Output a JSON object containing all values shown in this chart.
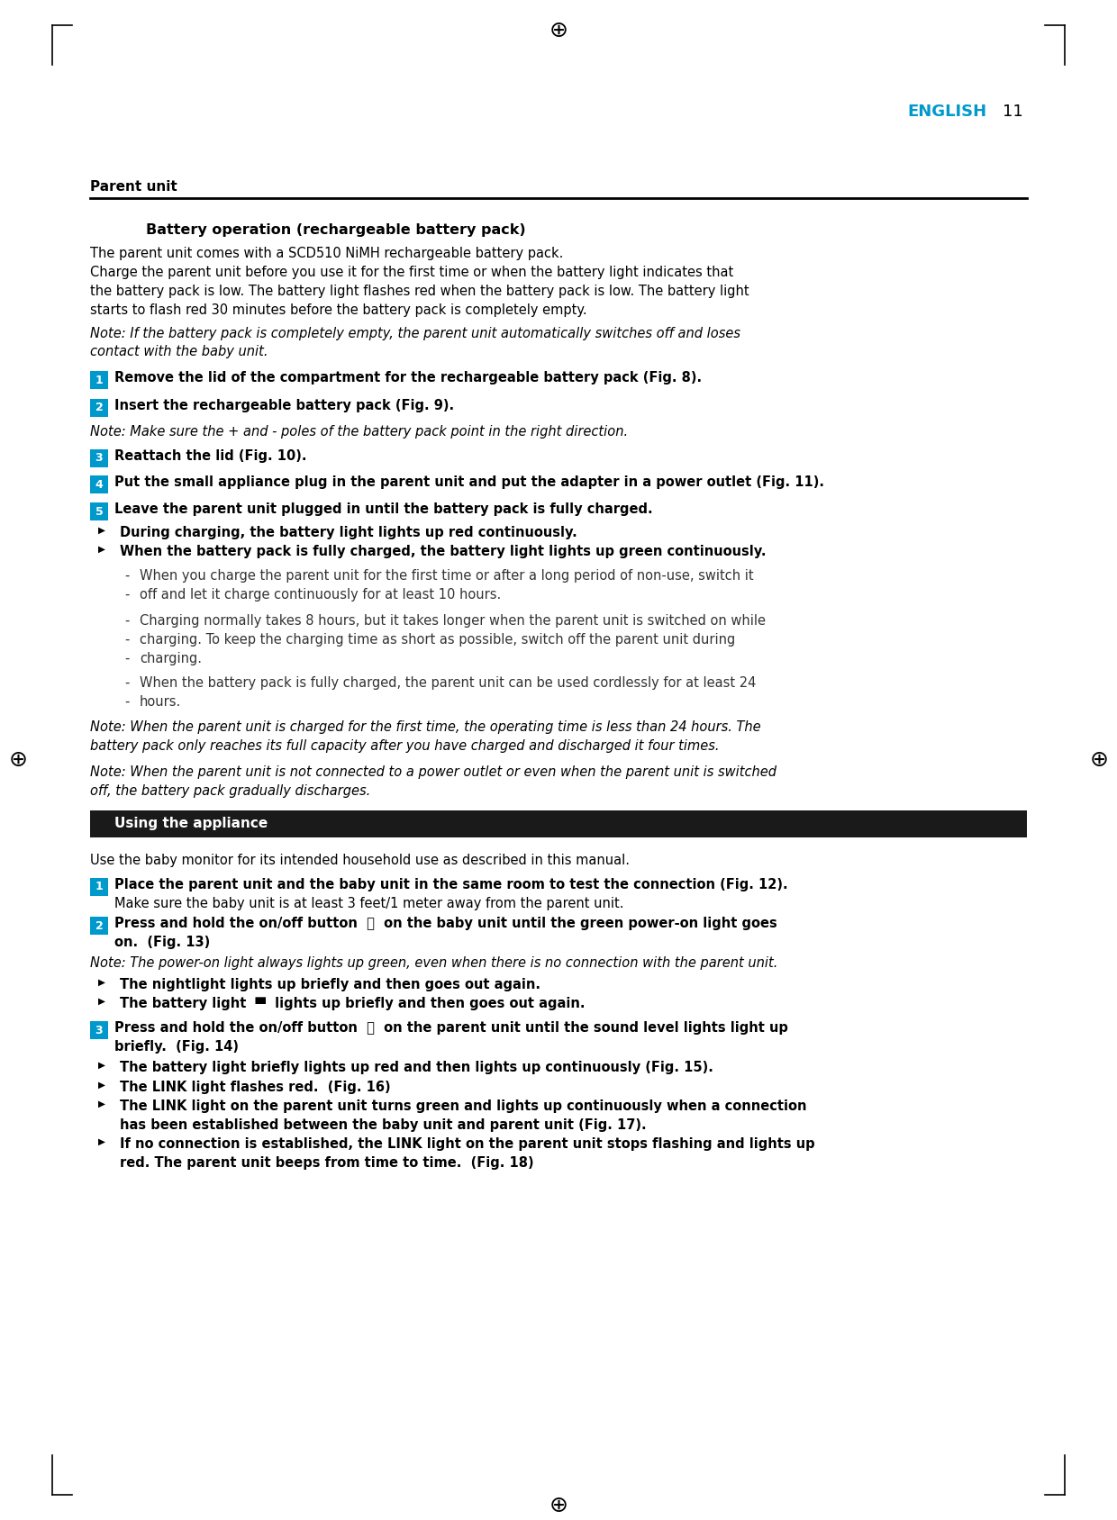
{
  "bg_color": "#ffffff",
  "text_color": "#000000",
  "blue_color": "#0099cc",
  "dark_bg": "#1a1a1a",
  "english_text": "ENGLISH",
  "english_num": "11",
  "header_section": "Parent unit",
  "battery_section_title": "Battery operation (rechargeable battery pack)",
  "body_text_1": "The parent unit comes with a SCD510 NiMH rechargeable battery pack.",
  "body_text_2a": "Charge the parent unit before you use it for the first time or when the battery light indicates that",
  "body_text_2b": "the battery pack is low. The battery light flashes red when the battery pack is low. The battery light",
  "body_text_2c": "starts to flash red 30 minutes before the battery pack is completely empty.",
  "note_italic_1a": "Note: If the battery pack is completely empty, the parent unit automatically switches off and loses",
  "note_italic_1b": "contact with the baby unit.",
  "step1_text": "Remove the lid of the compartment for the rechargeable battery pack (Fig. 8).",
  "step2_text": "Insert the rechargeable battery pack (Fig. 9).",
  "note_italic_2": "Note: Make sure the + and - poles of the battery pack point in the right direction.",
  "step3_text": "Reattach the lid (Fig. 10).",
  "step4_text": "Put the small appliance plug in the parent unit and put the adapter in a power outlet (Fig. 11).",
  "step5_text": "Leave the parent unit plugged in until the battery pack is fully charged.",
  "bullet1_text": "During charging, the battery light lights up red continuously.",
  "bullet2_text": "When the battery pack is fully charged, the battery light lights up green continuously.",
  "dash1a": "When you charge the parent unit for the first time or after a long period of non-use, switch it",
  "dash1b": "off and let it charge continuously for at least 10 hours.",
  "dash2a": "Charging normally takes 8 hours, but it takes longer when the parent unit is switched on while",
  "dash2b": "charging. To keep the charging time as short as possible, switch off the parent unit during",
  "dash2c": "charging.",
  "dash3a": "When the battery pack is fully charged, the parent unit can be used cordlessly for at least 24",
  "dash3b": "hours.",
  "note_italic_3a": "Note: When the parent unit is charged for the first time, the operating time is less than 24 hours. The",
  "note_italic_3b": "battery pack only reaches its full capacity after you have charged and discharged it four times.",
  "note_italic_4a": "Note: When the parent unit is not connected to a power outlet or even when the parent unit is switched",
  "note_italic_4b": "off, the battery pack gradually discharges.",
  "using_section_title": "Using the appliance",
  "using_body": "Use the baby monitor for its intended household use as described in this manual.",
  "using_step1a": "Place the parent unit and the baby unit in the same room to test the connection (Fig. 12).",
  "using_step1b": "Make sure the baby unit is at least 3 feet/1 meter away from the parent unit.",
  "using_step2a": "Press and hold the on/off button  ⏻  on the baby unit until the green power-on light goes",
  "using_step2b": "on.  (Fig. 13)",
  "using_note_italic_1": "Note: The power-on light always lights up green, even when there is no connection with the parent unit.",
  "using_bullet1": "The nightlight lights up briefly and then goes out again.",
  "using_bullet2": "The battery light  ▀  lights up briefly and then goes out again.",
  "using_step3a": "Press and hold the on/off button  ⏻  on the parent unit until the sound level lights light up",
  "using_step3b": "briefly.  (Fig. 14)",
  "using_bullet3": "The battery light briefly lights up red and then lights up continuously (Fig. 15).",
  "using_bullet4": "The LINK light flashes red.  (Fig. 16)",
  "using_bullet5a": "The LINK light on the parent unit turns green and lights up continuously when a connection",
  "using_bullet5b": "has been established between the baby unit and parent unit (Fig. 17).",
  "using_bullet6a": "If no connection is established, the LINK light on the parent unit stops flashing and lights up",
  "using_bullet6b": "red. The parent unit beeps from time to time.  (Fig. 18)"
}
